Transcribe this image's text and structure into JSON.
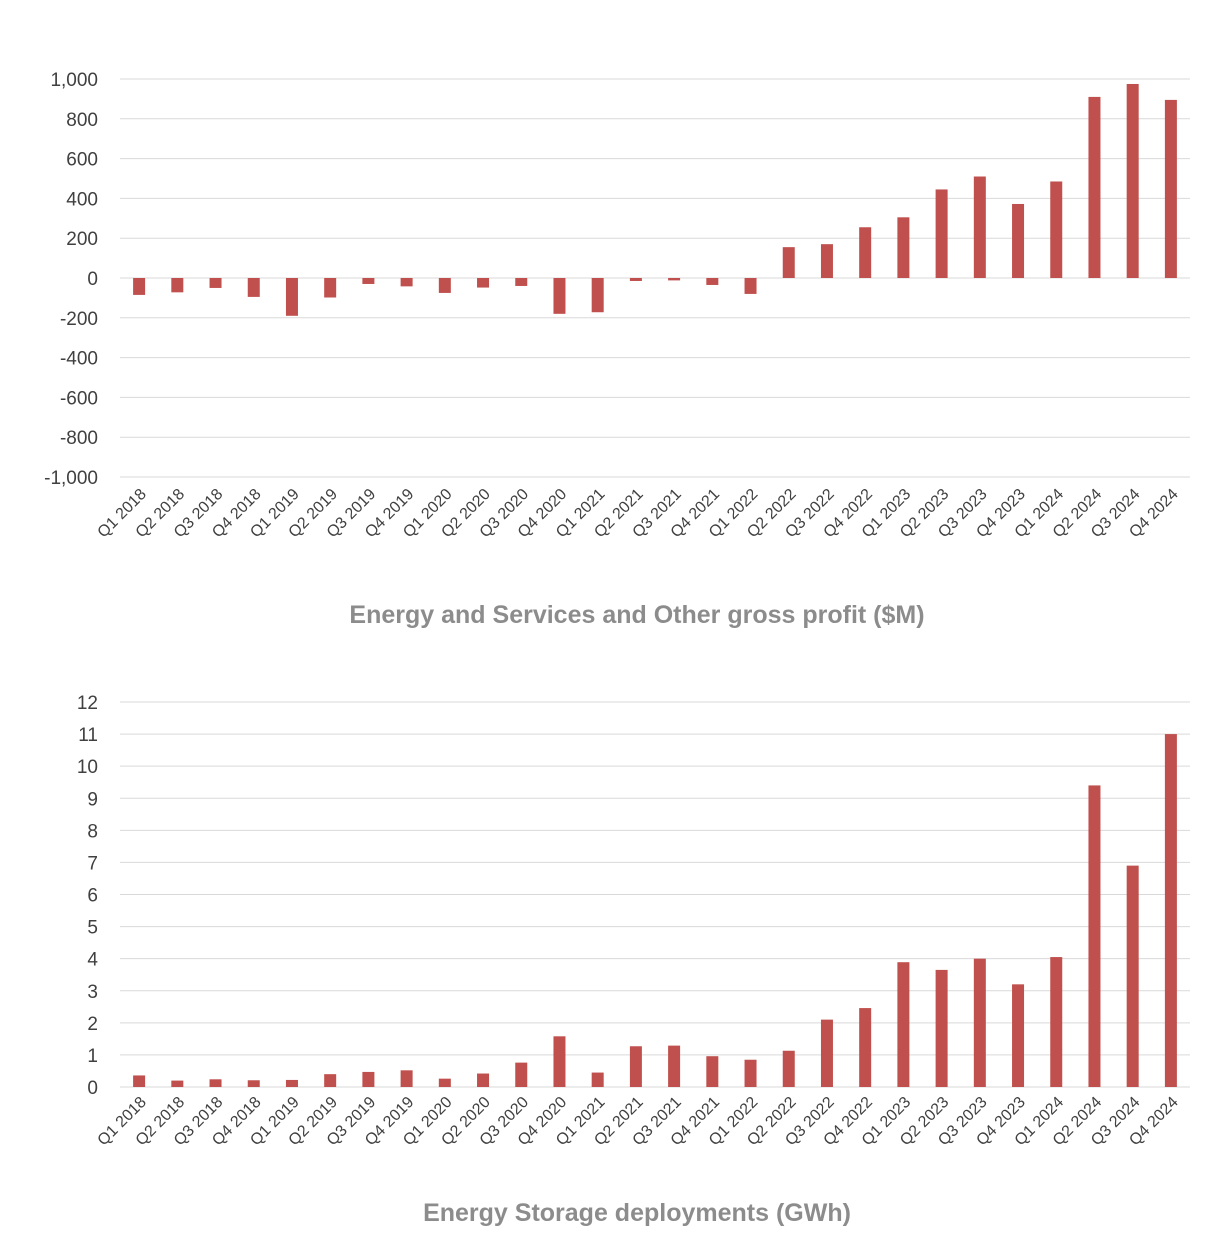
{
  "chart_data": [
    {
      "type": "bar",
      "title": "Energy and Services and Other gross profit ($M)",
      "xlabel": "",
      "ylabel": "",
      "ylim": [
        -1000,
        1000
      ],
      "yticks": [
        1000,
        800,
        600,
        400,
        200,
        0,
        -200,
        -400,
        -600,
        -800,
        -1000
      ],
      "ytick_labels": [
        "1,000",
        "800",
        "600",
        "400",
        "200",
        "0",
        "-200",
        "-400",
        "-600",
        "-800",
        "-1,000"
      ],
      "grid": true,
      "bar_color": "#c0504d",
      "categories": [
        "Q1 2018",
        "Q2 2018",
        "Q3 2018",
        "Q4 2018",
        "Q1 2019",
        "Q2 2019",
        "Q3 2019",
        "Q4 2019",
        "Q1 2020",
        "Q2 2020",
        "Q3 2020",
        "Q4 2020",
        "Q1 2021",
        "Q2 2021",
        "Q3 2021",
        "Q4 2021",
        "Q1 2022",
        "Q2 2022",
        "Q3 2022",
        "Q4 2022",
        "Q1 2023",
        "Q2 2023",
        "Q3 2023",
        "Q4 2023",
        "Q1 2024",
        "Q2 2024",
        "Q3 2024",
        "Q4 2024"
      ],
      "values": [
        -85,
        -72,
        -50,
        -95,
        -190,
        -98,
        -30,
        -42,
        -75,
        -48,
        -40,
        -180,
        -172,
        -15,
        -12,
        -35,
        -80,
        155,
        170,
        255,
        305,
        445,
        510,
        372,
        485,
        910,
        975,
        895
      ]
    },
    {
      "type": "bar",
      "title": "Energy Storage deployments (GWh)",
      "xlabel": "",
      "ylabel": "",
      "ylim": [
        0,
        12
      ],
      "yticks": [
        12,
        11,
        10,
        9,
        8,
        7,
        6,
        5,
        4,
        3,
        2,
        1,
        0
      ],
      "ytick_labels": [
        "12",
        "11",
        "10",
        "9",
        "8",
        "7",
        "6",
        "5",
        "4",
        "3",
        "2",
        "1",
        "0"
      ],
      "grid": true,
      "bar_color": "#c0504d",
      "categories": [
        "Q1 2018",
        "Q2 2018",
        "Q3 2018",
        "Q4 2018",
        "Q1 2019",
        "Q2 2019",
        "Q3 2019",
        "Q4 2019",
        "Q1 2020",
        "Q2 2020",
        "Q3 2020",
        "Q4 2020",
        "Q1 2021",
        "Q2 2021",
        "Q3 2021",
        "Q4 2021",
        "Q1 2022",
        "Q2 2022",
        "Q3 2022",
        "Q4 2022",
        "Q1 2023",
        "Q2 2023",
        "Q3 2023",
        "Q4 2023",
        "Q1 2024",
        "Q2 2024",
        "Q3 2024",
        "Q4 2024"
      ],
      "values": [
        0.36,
        0.2,
        0.24,
        0.21,
        0.22,
        0.4,
        0.47,
        0.52,
        0.26,
        0.42,
        0.76,
        1.58,
        0.45,
        1.27,
        1.29,
        0.96,
        0.85,
        1.13,
        2.1,
        2.46,
        3.89,
        3.65,
        4.0,
        3.2,
        4.05,
        9.4,
        6.9,
        11.0
      ]
    }
  ]
}
